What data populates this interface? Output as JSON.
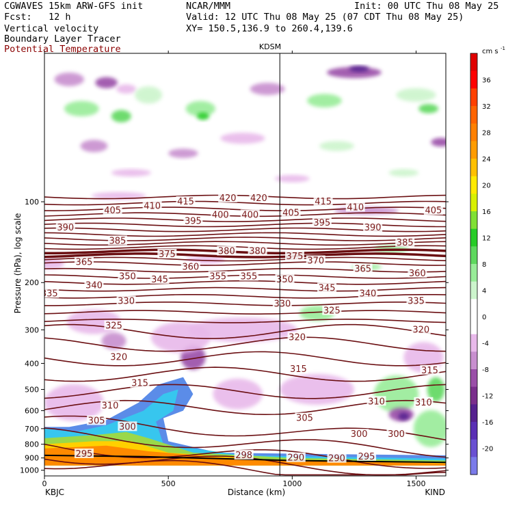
{
  "header": {
    "model": "CGWAVES 15km ARW-GFS init",
    "org": "NCAR/MMM",
    "init": "Init: 00 UTC Thu 08 May 25",
    "fcst": "Fcst:   12 h",
    "valid": "Valid: 12 UTC Thu 08 May 25 (07 CDT Thu 08 May 25)",
    "field1": "Vertical velocity",
    "xy": "XY= 150.5,136.9 to 260.4,139.6",
    "field2": "Boundary Layer Tracer",
    "field3": "Potential Temperature"
  },
  "chart_data": {
    "type": "heatmap",
    "title": "KDSM",
    "xlabel": "Distance (km)",
    "ylabel": "Pressure (hPa), log scale",
    "xlim": [
      0,
      1620
    ],
    "ylim": [
      1050,
      28
    ],
    "y_scale": "log",
    "x_ticks": [
      0,
      500,
      1000,
      1500
    ],
    "y_ticks": [
      100,
      200,
      300,
      400,
      500,
      600,
      700,
      800,
      900,
      1000
    ],
    "left_endpoint": "KBJC",
    "right_endpoint": "KIND",
    "marker_x": 950,
    "colorbar": {
      "unit": "cm s",
      "unit_exp": "-1",
      "colors": [
        "#7b7bea",
        "#6a50d2",
        "#5a2fb5",
        "#55218f",
        "#7a2e8c",
        "#9a4ea8",
        "#c88fcf",
        "#e8b9ea",
        "#ffffff",
        "#ffffff",
        "#ccf4cc",
        "#98ec98",
        "#5ed85e",
        "#27cc27",
        "#80e035",
        "#d8f000",
        "#ffea00",
        "#ffc000",
        "#ff9c00",
        "#ff8000",
        "#ff6400",
        "#ff4000",
        "#ff0000",
        "#e00000"
      ],
      "labels": [
        -20,
        -16,
        -12,
        -8,
        -4,
        0,
        4,
        8,
        12,
        16,
        20,
        24,
        28,
        32,
        36
      ]
    },
    "theta_contours": [
      {
        "value": 295,
        "label_points": [
          [
            160,
            870
          ]
        ]
      },
      {
        "value": 290,
        "label_points": [
          [
            1015,
            900
          ],
          [
            1180,
            905
          ]
        ]
      },
      {
        "value": 295,
        "label_points": [
          [
            1300,
            890
          ]
        ]
      },
      {
        "value": 298,
        "label_points": [
          [
            805,
            880
          ]
        ]
      },
      {
        "value": 300,
        "label_points": [
          [
            335,
            690
          ],
          [
            1270,
            735
          ],
          [
            1420,
            735
          ]
        ]
      },
      {
        "value": 305,
        "label_points": [
          [
            210,
            655
          ],
          [
            1050,
            640
          ]
        ]
      },
      {
        "value": 310,
        "label_points": [
          [
            265,
            575
          ],
          [
            1340,
            555
          ],
          [
            1530,
            560
          ]
        ]
      },
      {
        "value": 315,
        "label_points": [
          [
            385,
            475
          ],
          [
            1025,
            420
          ],
          [
            1555,
            425
          ]
        ]
      },
      {
        "value": 320,
        "label_points": [
          [
            300,
            380
          ],
          [
            1020,
            320
          ],
          [
            1520,
            300
          ]
        ]
      },
      {
        "value": 325,
        "label_points": [
          [
            280,
            290
          ],
          [
            1160,
            255
          ]
        ]
      },
      {
        "value": 330,
        "label_points": [
          [
            330,
            235
          ],
          [
            960,
            240
          ]
        ]
      },
      {
        "value": 335,
        "label_points": [
          [
            20,
            220
          ],
          [
            1500,
            235
          ]
        ]
      },
      {
        "value": 340,
        "label_points": [
          [
            200,
            205
          ],
          [
            1305,
            220
          ]
        ]
      },
      {
        "value": 345,
        "label_points": [
          [
            465,
            195
          ],
          [
            1140,
            210
          ]
        ]
      },
      {
        "value": 350,
        "label_points": [
          [
            335,
            190
          ],
          [
            970,
            195
          ]
        ]
      },
      {
        "value": 355,
        "label_points": [
          [
            700,
            190
          ],
          [
            825,
            190
          ]
        ]
      },
      {
        "value": 360,
        "label_points": [
          [
            590,
            175
          ],
          [
            1505,
            185
          ]
        ]
      },
      {
        "value": 365,
        "label_points": [
          [
            160,
            168
          ],
          [
            1285,
            178
          ]
        ]
      },
      {
        "value": 370,
        "label_points": [
          [
            1095,
            166
          ]
        ]
      },
      {
        "value": 375,
        "label_points": [
          [
            495,
            157
          ],
          [
            1010,
            160
          ]
        ]
      },
      {
        "value": 380,
        "label_points": [
          [
            735,
            153
          ],
          [
            860,
            153
          ]
        ]
      },
      {
        "value": 385,
        "label_points": [
          [
            295,
            140
          ],
          [
            1455,
            142
          ]
        ]
      },
      {
        "value": 390,
        "label_points": [
          [
            85,
            125
          ],
          [
            1325,
            125
          ]
        ]
      },
      {
        "value": 395,
        "label_points": [
          [
            600,
            118
          ],
          [
            1120,
            120
          ]
        ]
      },
      {
        "value": 400,
        "label_points": [
          [
            710,
            112
          ],
          [
            830,
            112
          ]
        ]
      },
      {
        "value": 405,
        "label_points": [
          [
            275,
            108
          ],
          [
            995,
            110
          ],
          [
            1570,
            108
          ]
        ]
      },
      {
        "value": 410,
        "label_points": [
          [
            435,
            104
          ],
          [
            1255,
            105
          ]
        ]
      },
      {
        "value": 415,
        "label_points": [
          [
            570,
            100
          ],
          [
            1125,
            100
          ]
        ]
      },
      {
        "value": 420,
        "label_points": [
          [
            740,
            97
          ],
          [
            865,
            97
          ]
        ]
      }
    ]
  }
}
